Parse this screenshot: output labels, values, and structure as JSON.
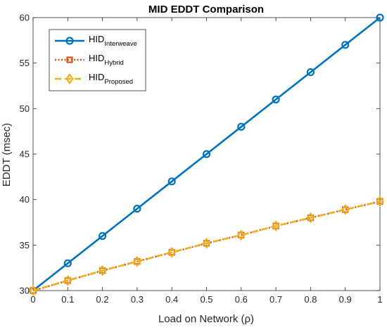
{
  "chart_data": {
    "type": "line",
    "title": "MID EDDT Comparison",
    "xlabel": "Load on Network (ρ)",
    "ylabel": "EDDT (msec)",
    "xlim": [
      0,
      1
    ],
    "ylim": [
      30,
      60
    ],
    "xticks": [
      "0",
      "0.1",
      "0.2",
      "0.3",
      "0.4",
      "0.5",
      "0.6",
      "0.7",
      "0.8",
      "0.9",
      "1"
    ],
    "yticks": [
      "30",
      "35",
      "40",
      "45",
      "50",
      "55",
      "60"
    ],
    "x": [
      0,
      0.1,
      0.2,
      0.3,
      0.4,
      0.5,
      0.6,
      0.7,
      0.8,
      0.9,
      1.0
    ],
    "legend_position": "top-left",
    "grid": false,
    "series": [
      {
        "name": "HID",
        "subscript": "Interweave",
        "color": "#0072BD",
        "marker": "circle",
        "line_style": "solid",
        "values": [
          30,
          33,
          36,
          39,
          42,
          45,
          48,
          51,
          54,
          57,
          60
        ]
      },
      {
        "name": "HID",
        "subscript": "Hybrid",
        "color": "#D95319",
        "marker": "square",
        "line_style": "dotted",
        "values": [
          30,
          31.1,
          32.2,
          33.2,
          34.2,
          35.2,
          36.1,
          37.1,
          38.0,
          38.9,
          39.8
        ]
      },
      {
        "name": "HID",
        "subscript": "Proposed",
        "color": "#EDB120",
        "marker": "diamond",
        "line_style": "dashed",
        "values": [
          30,
          31.1,
          32.2,
          33.2,
          34.2,
          35.2,
          36.1,
          37.1,
          38.0,
          38.9,
          39.8
        ]
      }
    ]
  }
}
